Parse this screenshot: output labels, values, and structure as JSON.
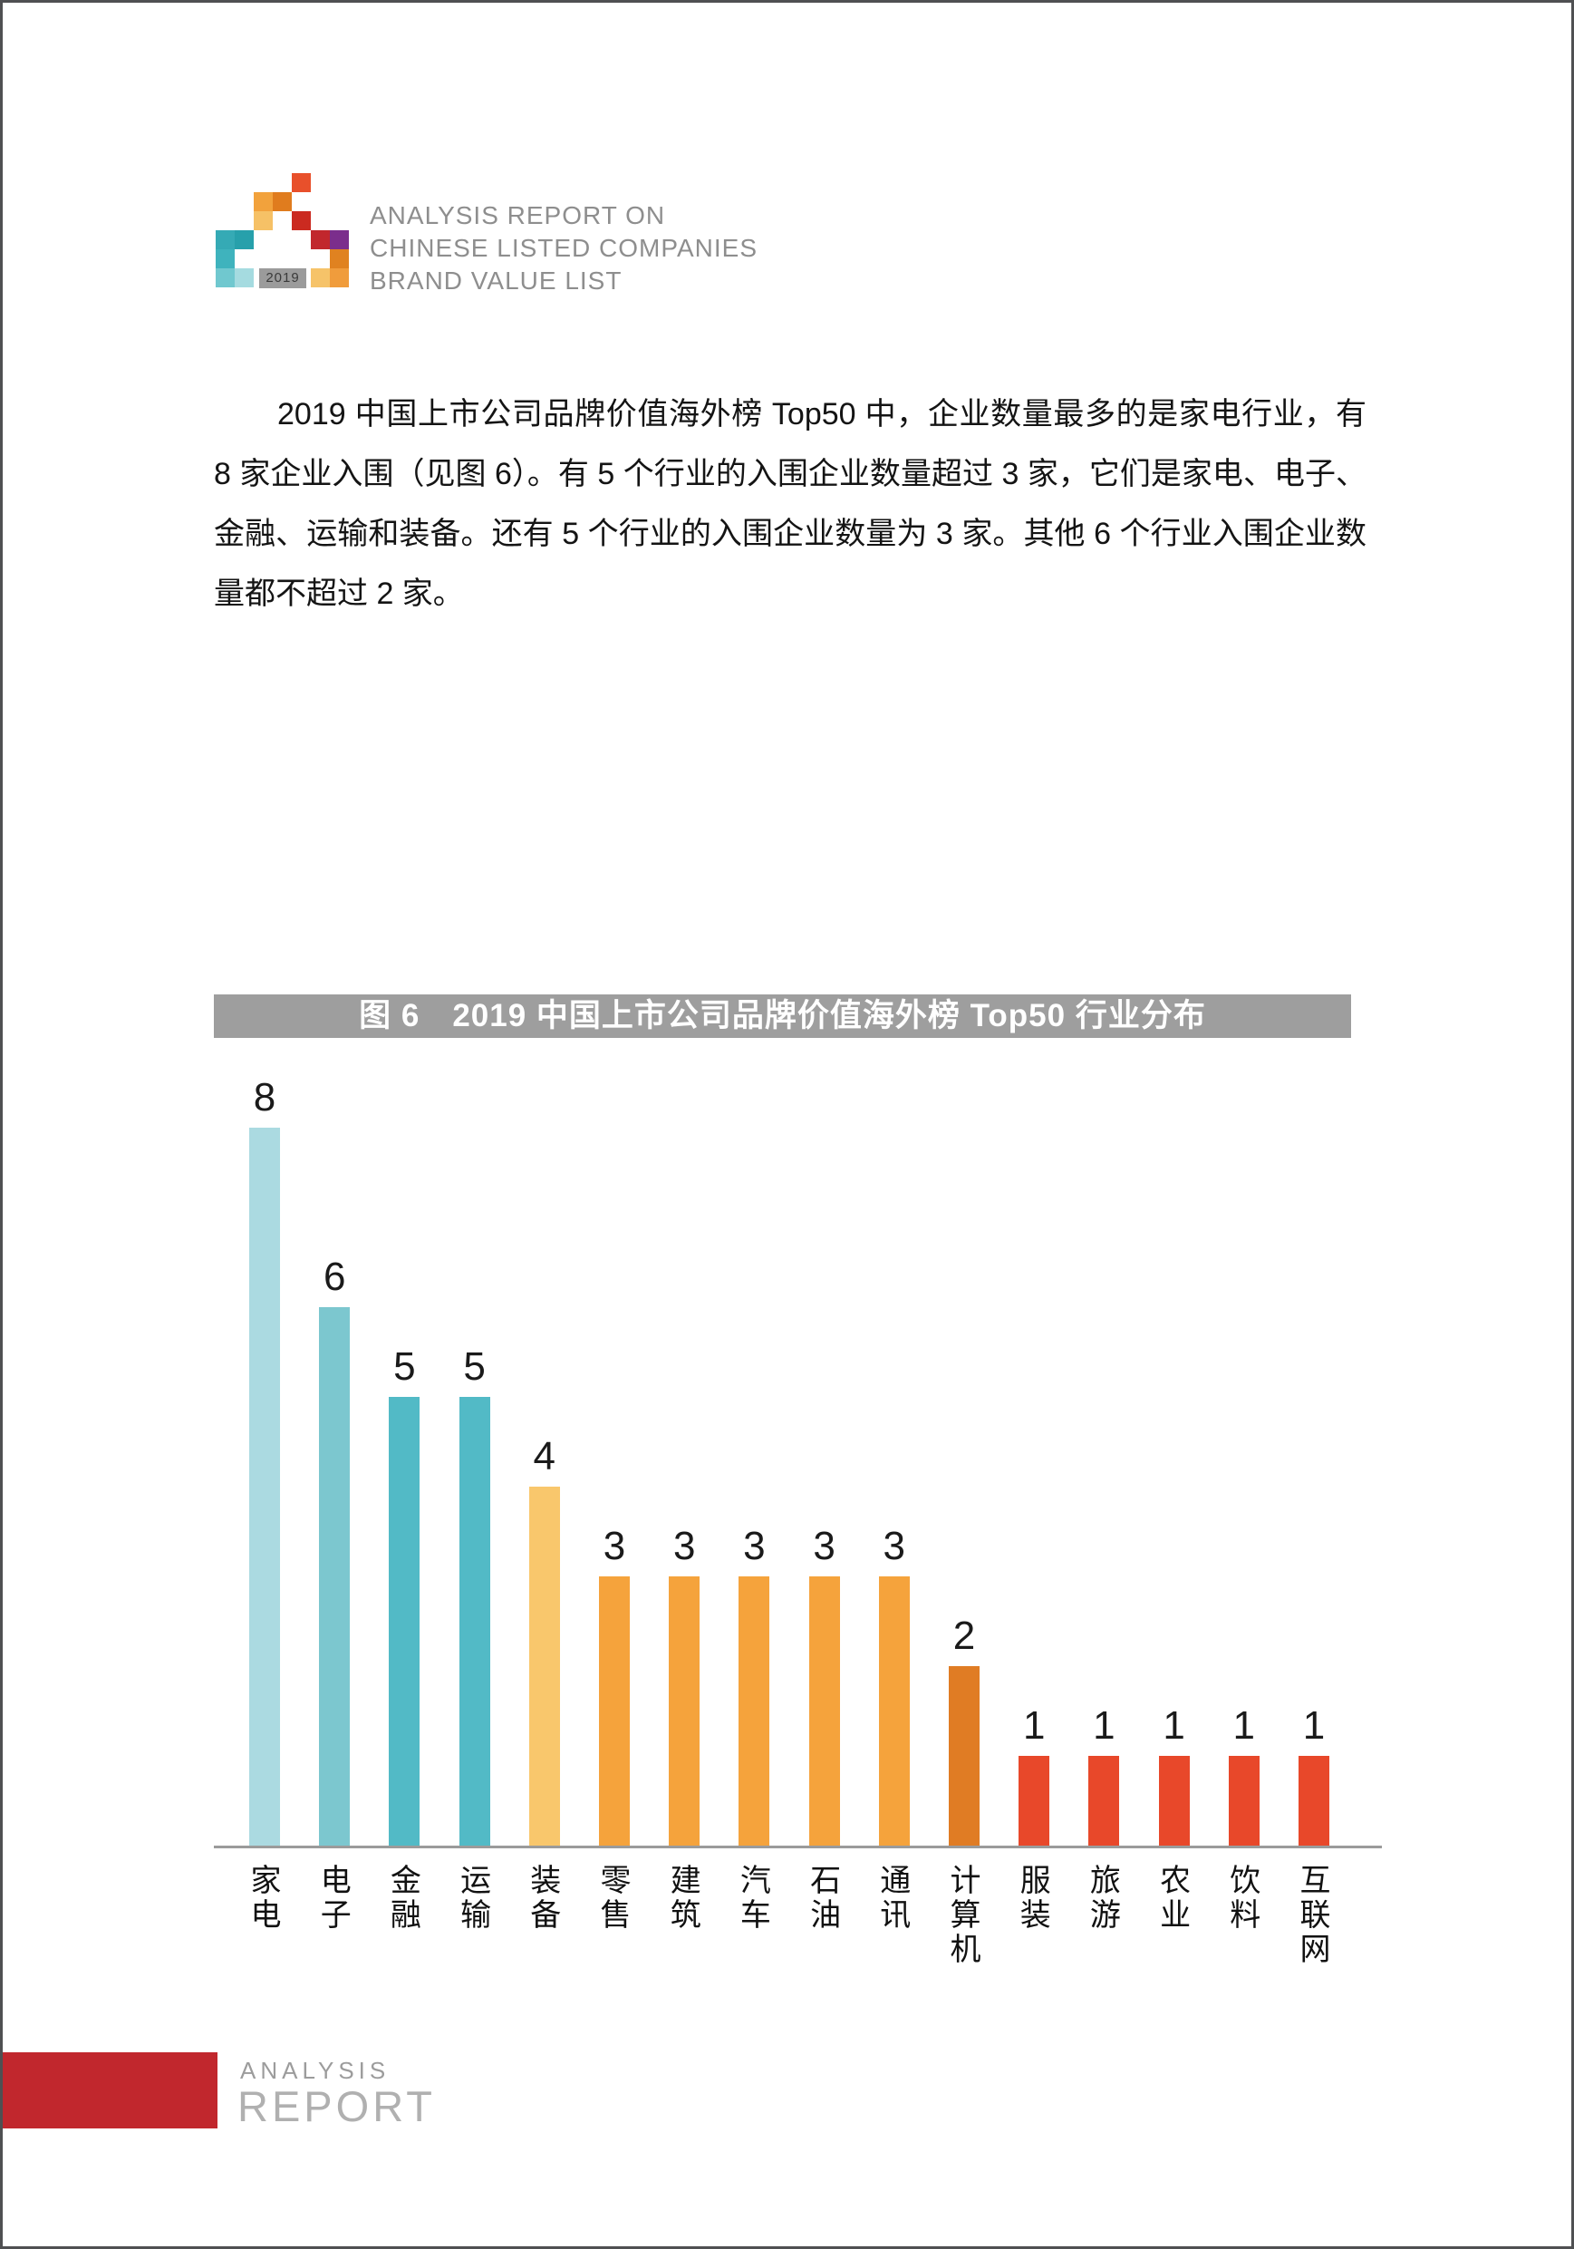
{
  "header": {
    "title_lines": [
      "ANALYSIS REPORT ON",
      "CHINESE LISTED COMPANIES",
      "BRAND VALUE LIST"
    ]
  },
  "logo": {
    "year": "2019",
    "squares": [
      {
        "col": 4,
        "row": 0,
        "color": "#e8502b"
      },
      {
        "col": 2,
        "row": 1,
        "color": "#f2a23c"
      },
      {
        "col": 3,
        "row": 1,
        "color": "#e07c1e"
      },
      {
        "col": 2,
        "row": 2,
        "color": "#f6c166"
      },
      {
        "col": 4,
        "row": 2,
        "color": "#cb2a20"
      },
      {
        "col": 0,
        "row": 3,
        "color": "#35aab5"
      },
      {
        "col": 1,
        "row": 3,
        "color": "#27a0ab"
      },
      {
        "col": 5,
        "row": 3,
        "color": "#c1272d"
      },
      {
        "col": 6,
        "row": 3,
        "color": "#7b2e8c"
      },
      {
        "col": 0,
        "row": 4,
        "color": "#3fb3bd"
      },
      {
        "col": 6,
        "row": 4,
        "color": "#e08220"
      },
      {
        "col": 0,
        "row": 5,
        "color": "#70c8cf"
      },
      {
        "col": 1,
        "row": 5,
        "color": "#a5dbe0"
      },
      {
        "col": 5,
        "row": 5,
        "color": "#f6c369"
      },
      {
        "col": 6,
        "row": 5,
        "color": "#f09c3c"
      }
    ]
  },
  "paragraph": {
    "lines": [
      "2019 中国上市公司品牌价值海外榜 Top50 中，企业数量最多的是家电行业，有",
      "8 家企业入围（见图 6）。有 5 个行业的入围企业数量超过 3 家，它们是家电、电子、",
      "金融、运输和装备。还有 5 个行业的入围企业数量为 3 家。其他 6 个行业入围企业数",
      "量都不超过 2 家。"
    ]
  },
  "chart_data": {
    "type": "bar",
    "title": "图 6　2019 中国上市公司品牌价值海外榜 Top50 行业分布",
    "title_bg": "#9e9e9e",
    "title_color": "#ffffff",
    "categories": [
      "家电",
      "电子",
      "金融",
      "运输",
      "装备",
      "零售",
      "建筑",
      "汽车",
      "石油",
      "通讯",
      "计算机",
      "服装",
      "旅游",
      "农业",
      "饮料",
      "互联网"
    ],
    "values": [
      8,
      6,
      5,
      5,
      4,
      3,
      3,
      3,
      3,
      3,
      2,
      1,
      1,
      1,
      1,
      1
    ],
    "bar_colors": [
      "#abdae1",
      "#7cc7cf",
      "#52bac6",
      "#52bac6",
      "#f9c76c",
      "#f5a33c",
      "#f5a33c",
      "#f5a33c",
      "#f5a33c",
      "#f5a33c",
      "#e07c24",
      "#e8482a",
      "#e8482a",
      "#e8482a",
      "#e8482a",
      "#e8482a"
    ],
    "ylim": [
      0,
      8.8
    ],
    "grid": false,
    "legend": false,
    "value_labels_shown": true,
    "axis_color": "#9b9b9b"
  },
  "footer": {
    "line1": "ANALYSIS",
    "line2": "REPORT",
    "accent_color": "#c1272d"
  }
}
